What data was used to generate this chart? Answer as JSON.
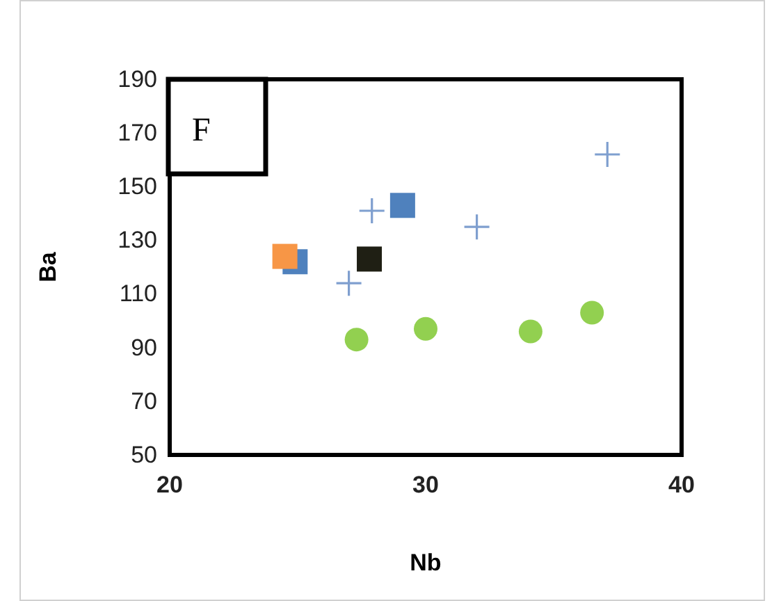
{
  "chart_data": {
    "type": "scatter",
    "xlabel": "Nb",
    "ylabel": "Ba",
    "xlim": [
      20,
      40
    ],
    "xticks": [
      20,
      30,
      40
    ],
    "ylim": [
      50,
      190
    ],
    "yticks": [
      50,
      70,
      90,
      110,
      130,
      150,
      170,
      190
    ],
    "annotations": [
      "F"
    ],
    "series": [
      {
        "color": "#7f9fcf",
        "marker": "cross",
        "x": [
          37.1,
          32.0,
          27.9,
          27.0
        ],
        "values": [
          162,
          135,
          141,
          114
        ]
      },
      {
        "color": "#4f81bd",
        "marker": "square",
        "x": [
          24.9,
          29.1
        ],
        "values": [
          122,
          143
        ]
      },
      {
        "color": "#f79646",
        "marker": "square",
        "x": [
          24.5
        ],
        "values": [
          124
        ]
      },
      {
        "color": "#1f1f14",
        "marker": "square",
        "x": [
          27.8
        ],
        "values": [
          123
        ]
      },
      {
        "color": "#92d050",
        "marker": "circle",
        "x": [
          27.3,
          30.0,
          34.1,
          36.5
        ],
        "values": [
          93,
          97,
          96,
          103
        ]
      }
    ]
  }
}
